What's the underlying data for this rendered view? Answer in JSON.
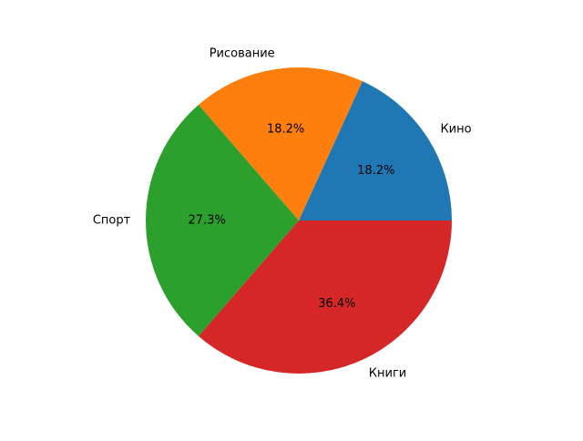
{
  "chart_data": {
    "type": "pie",
    "title": "",
    "start_angle_deg": 0,
    "direction": "counterclockwise",
    "slices": [
      {
        "label": "Кино",
        "value": 18.2,
        "pct_label": "18.2%",
        "color": "#1f77b4"
      },
      {
        "label": "Рисование",
        "value": 18.2,
        "pct_label": "18.2%",
        "color": "#ff7f0e"
      },
      {
        "label": "Спорт",
        "value": 27.3,
        "pct_label": "27.3%",
        "color": "#2ca02c"
      },
      {
        "label": "Книги",
        "value": 36.4,
        "pct_label": "36.4%",
        "color": "#d62728"
      }
    ]
  }
}
